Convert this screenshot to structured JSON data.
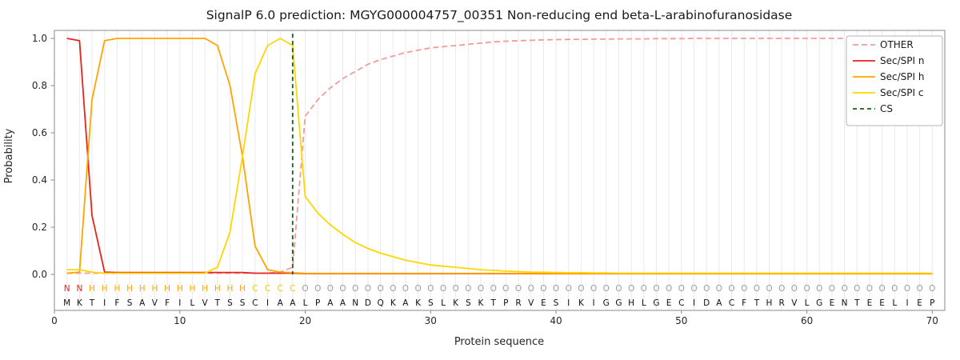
{
  "chart_data": {
    "type": "line",
    "title": "SignalP 6.0 prediction: MGYG000004757_00351 Non-reducing end beta-L-arabinofuranosidase",
    "xlabel": "Protein sequence",
    "ylabel": "Probability",
    "xlim": [
      0,
      71
    ],
    "ylim": [
      0,
      1.0
    ],
    "x_ticks": [
      0,
      10,
      20,
      30,
      40,
      50,
      60,
      70
    ],
    "y_ticks": [
      0.0,
      0.2,
      0.4,
      0.6,
      0.8,
      1.0
    ],
    "grid": "vertical line per residue",
    "legend_position": "upper right",
    "x_start": 1,
    "sequence": "MKTIFSAVFILVTSSCIAALPAANDQKAKSLKSKTPRVESIKIGGHLGECIDACFTHRVLGENTEELIEP",
    "region_labels": "NNHHHHHHHHHHHHHCCCCOOOOOOOOOOOOOOOOOOOOOOOOOOOOOOOOOOOOOOOOOOOOOOOOOO",
    "region_colors": {
      "N": "#e8221d",
      "H": "#ffa400",
      "C": "#f2c50f",
      "O": "#9b9b9b"
    },
    "colors": {
      "grid": "#e9e9e9",
      "frame": "#8a8a8a",
      "tick_text": "#262626",
      "title_text": "#1a1a1a",
      "residue_text": "#111111",
      "legend_border": "#b3b3b3",
      "legend_bg": "#ffffff"
    },
    "series": [
      {
        "name": "OTHER",
        "color": "#f49b9b",
        "dash": true,
        "values": [
          0.005,
          0.005,
          0.005,
          0.005,
          0.005,
          0.005,
          0.005,
          0.005,
          0.005,
          0.005,
          0.005,
          0.005,
          0.005,
          0.005,
          0.005,
          0.005,
          0.005,
          0.01,
          0.03,
          0.67,
          0.74,
          0.79,
          0.83,
          0.86,
          0.89,
          0.91,
          0.925,
          0.94,
          0.95,
          0.96,
          0.965,
          0.97,
          0.975,
          0.98,
          0.985,
          0.988,
          0.99,
          0.992,
          0.994,
          0.995,
          0.996,
          0.996,
          0.997,
          0.997,
          0.998,
          0.998,
          0.998,
          0.999,
          0.999,
          0.999,
          1.0,
          1.0,
          1.0,
          1.0,
          1.0,
          1.0,
          1.0,
          1.0,
          1.0,
          1.0,
          1.0,
          1.0,
          1.0,
          1.0,
          1.0,
          1.0,
          1.0,
          1.0,
          1.0,
          1.0
        ]
      },
      {
        "name": "Sec/SPI n",
        "color": "#e8221d",
        "dash": false,
        "values": [
          1.0,
          0.99,
          0.25,
          0.01,
          0.008,
          0.008,
          0.008,
          0.008,
          0.008,
          0.008,
          0.008,
          0.008,
          0.008,
          0.008,
          0.008,
          0.005,
          0.005,
          0.005,
          0.005,
          0.003,
          0.003,
          0.003,
          0.003,
          0.003,
          0.003,
          0.003,
          0.003,
          0.003,
          0.003,
          0.003,
          0.003,
          0.003,
          0.003,
          0.003,
          0.003,
          0.003,
          0.003,
          0.003,
          0.003,
          0.003,
          0.003,
          0.003,
          0.003,
          0.003,
          0.003,
          0.003,
          0.003,
          0.003,
          0.003,
          0.003,
          0.003,
          0.003,
          0.003,
          0.003,
          0.003,
          0.003,
          0.003,
          0.003,
          0.003,
          0.003,
          0.003,
          0.003,
          0.003,
          0.003,
          0.003,
          0.003,
          0.003,
          0.003,
          0.003,
          0.003
        ]
      },
      {
        "name": "Sec/SPI h",
        "color": "#ffa400",
        "dash": false,
        "values": [
          0.005,
          0.01,
          0.74,
          0.99,
          1.0,
          1.0,
          1.0,
          1.0,
          1.0,
          1.0,
          1.0,
          1.0,
          0.97,
          0.8,
          0.5,
          0.12,
          0.02,
          0.01,
          0.007,
          0.004,
          0.004,
          0.004,
          0.004,
          0.004,
          0.004,
          0.004,
          0.004,
          0.004,
          0.004,
          0.004,
          0.004,
          0.004,
          0.004,
          0.004,
          0.004,
          0.004,
          0.004,
          0.004,
          0.004,
          0.004,
          0.004,
          0.004,
          0.004,
          0.004,
          0.004,
          0.004,
          0.004,
          0.004,
          0.004,
          0.004,
          0.004,
          0.004,
          0.004,
          0.004,
          0.004,
          0.004,
          0.004,
          0.004,
          0.004,
          0.004,
          0.004,
          0.004,
          0.004,
          0.004,
          0.004,
          0.004,
          0.004,
          0.004,
          0.004,
          0.004
        ]
      },
      {
        "name": "Sec/SPI c",
        "color": "#ffd700",
        "dash": false,
        "values": [
          0.02,
          0.02,
          0.01,
          0.005,
          0.005,
          0.005,
          0.005,
          0.005,
          0.005,
          0.005,
          0.005,
          0.005,
          0.03,
          0.18,
          0.5,
          0.85,
          0.97,
          1.0,
          0.97,
          0.33,
          0.26,
          0.21,
          0.17,
          0.135,
          0.11,
          0.09,
          0.075,
          0.06,
          0.05,
          0.04,
          0.035,
          0.03,
          0.025,
          0.02,
          0.017,
          0.014,
          0.012,
          0.01,
          0.009,
          0.008,
          0.007,
          0.007,
          0.006,
          0.006,
          0.005,
          0.005,
          0.005,
          0.005,
          0.005,
          0.005,
          0.005,
          0.005,
          0.005,
          0.005,
          0.005,
          0.005,
          0.005,
          0.005,
          0.005,
          0.005,
          0.005,
          0.005,
          0.005,
          0.005,
          0.005,
          0.005,
          0.005,
          0.005,
          0.005,
          0.005
        ]
      }
    ],
    "cs": {
      "name": "CS",
      "x": 19,
      "color": "#146014",
      "dash": true
    }
  }
}
